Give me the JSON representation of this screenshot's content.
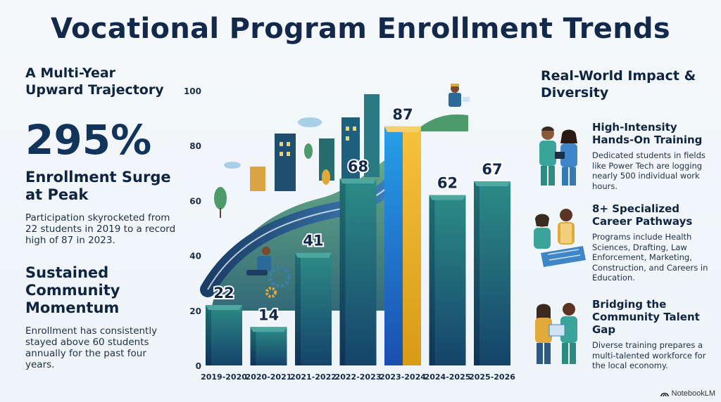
{
  "title": "Vocational Program Enrollment Trends",
  "left": {
    "subtitle": "A Multi-Year Upward Trajectory",
    "stat": "295%",
    "stat_heading": "Enrollment Surge at Peak",
    "stat_text": "Participation skyrocketed from 22 students in 2019 to a record high of 87 in 2023.",
    "momentum_heading": "Sustained Community Momentum",
    "momentum_text": "Enrollment has consistently stayed above 60 students annually for the past four years."
  },
  "right": {
    "subtitle": "Real-World Impact & Diversity",
    "cards": [
      {
        "title": "High-Intensity Hands-On Training",
        "text": "Dedicated students in fields like Power Tech are logging nearly 500 individual work hours.",
        "icon": "medical-students-icon"
      },
      {
        "title": "8+ Specialized Career Pathways",
        "text": "Programs include Health Sciences, Drafting, Law Enforcement, Marketing, Construction, and Careers in Education.",
        "icon": "drafting-students-icon"
      },
      {
        "title": "Bridging the Community Talent Gap",
        "text": "Diverse training prepares a multi-talented workforce for the local economy.",
        "icon": "workforce-students-icon"
      }
    ]
  },
  "brand": "NotebookLM",
  "colors": {
    "title": "#13294b",
    "bar_top": "#2c8c86",
    "bar_bottom": "#15436a",
    "peak_left": "#1f86d8",
    "peak_right": "#f0b429"
  },
  "chart_data": {
    "type": "bar",
    "categories": [
      "2019-2020",
      "2020-2021",
      "2021-2022",
      "2022-2023",
      "2023-2024",
      "2024-2025",
      "2025-2026"
    ],
    "values": [
      22,
      14,
      41,
      68,
      87,
      62,
      67
    ],
    "ylim": [
      0,
      100
    ],
    "yticks": [
      0,
      20,
      40,
      60,
      80,
      100
    ],
    "highlight_index": 4,
    "grid": false,
    "xlabel": "",
    "ylabel": ""
  }
}
